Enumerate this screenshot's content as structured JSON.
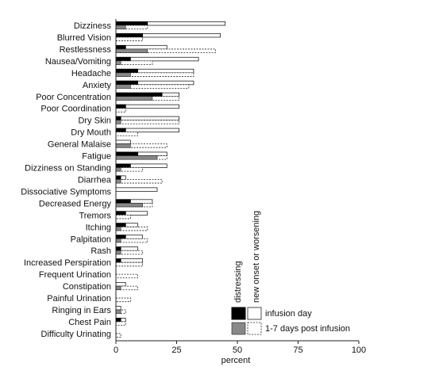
{
  "chart_data": {
    "type": "bar",
    "orientation": "horizontal",
    "xlabel": "percent",
    "xlim": [
      0,
      100
    ],
    "xticks": [
      0,
      25,
      50,
      75,
      100
    ],
    "categories": [
      "Dizziness",
      "Blurred Vision",
      "Restlessness",
      "Nausea/Vomiting",
      "Headache",
      "Anxiety",
      "Poor Concentration",
      "Poor Coordination",
      "Dry Skin",
      "Dry Mouth",
      "General Malaise",
      "Fatigue",
      "Dizziness on Standing",
      "Diarrhea",
      "Dissociative Symptoms",
      "Decreased Energy",
      "Tremors",
      "Itching",
      "Palpitation",
      "Rash",
      "Increased Perspiration",
      "Frequent Urination",
      "Constipation",
      "Painful Urination",
      "Ringing in Ears",
      "Chest Pain",
      "Difficulty Urinating"
    ],
    "series": [
      {
        "name": "infusion day",
        "group": "new onset or worsening",
        "style": "solid-white",
        "values": [
          45,
          43,
          21,
          34,
          32,
          32,
          26,
          26,
          26,
          26,
          6,
          21,
          21,
          4,
          17,
          15,
          13,
          9,
          11,
          9,
          11,
          0,
          4,
          0,
          2,
          4,
          0
        ]
      },
      {
        "name": "1-7 days post infusion",
        "group": "new onset or worsening",
        "style": "dashed-white",
        "values": [
          13,
          11,
          41,
          15,
          32,
          30,
          26,
          4,
          26,
          9,
          21,
          21,
          11,
          19,
          0,
          15,
          6,
          13,
          13,
          11,
          11,
          9,
          9,
          6,
          4,
          4,
          2
        ]
      },
      {
        "name": "infusion day",
        "group": "distressing",
        "style": "solid-black",
        "values": [
          13,
          11,
          4,
          6,
          9,
          9,
          19,
          4,
          2,
          4,
          0,
          9,
          6,
          2,
          0,
          6,
          4,
          4,
          4,
          2,
          2,
          0,
          0,
          0,
          0,
          2,
          0
        ]
      },
      {
        "name": "1-7 days post infusion",
        "group": "distressing",
        "style": "gray",
        "values": [
          4,
          0,
          13,
          2,
          6,
          6,
          15,
          0,
          2,
          0,
          6,
          17,
          2,
          2,
          0,
          11,
          0,
          2,
          2,
          2,
          0,
          0,
          2,
          0,
          2,
          0,
          0
        ]
      }
    ],
    "legend": {
      "placement": "bottom-right",
      "column_headers": [
        "distressing",
        "new onset or worsening"
      ],
      "rows": [
        "infusion day",
        "1-7 days post infusion"
      ]
    },
    "grid": false
  },
  "colors": {
    "black": "#000000",
    "gray": "#888888",
    "white": "#ffffff",
    "axis": "#222222"
  }
}
